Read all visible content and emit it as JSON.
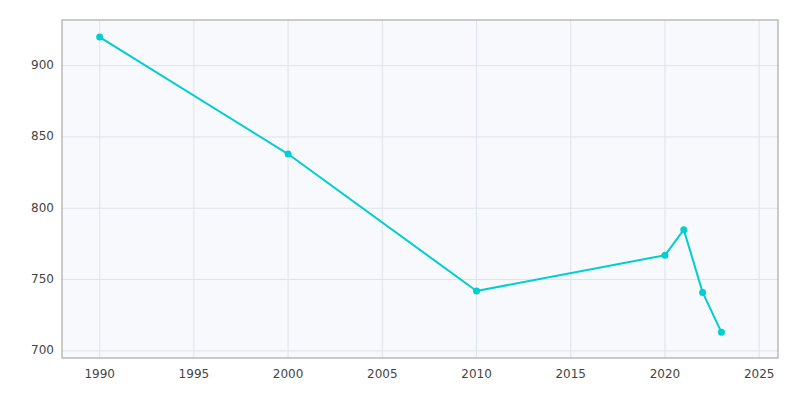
{
  "chart_data": {
    "type": "line",
    "x": [
      1990,
      2000,
      2010,
      2020,
      2021,
      2022,
      2023
    ],
    "values": [
      920,
      838,
      742,
      767,
      785,
      741,
      713
    ],
    "color": "#00CED1",
    "marker": "circle",
    "xlim": [
      1988,
      2026
    ],
    "ylim": [
      695,
      932
    ],
    "xticks": [
      1990,
      1995,
      2000,
      2005,
      2010,
      2015,
      2020,
      2025
    ],
    "yticks": [
      700,
      750,
      800,
      850,
      900
    ],
    "grid": true
  }
}
